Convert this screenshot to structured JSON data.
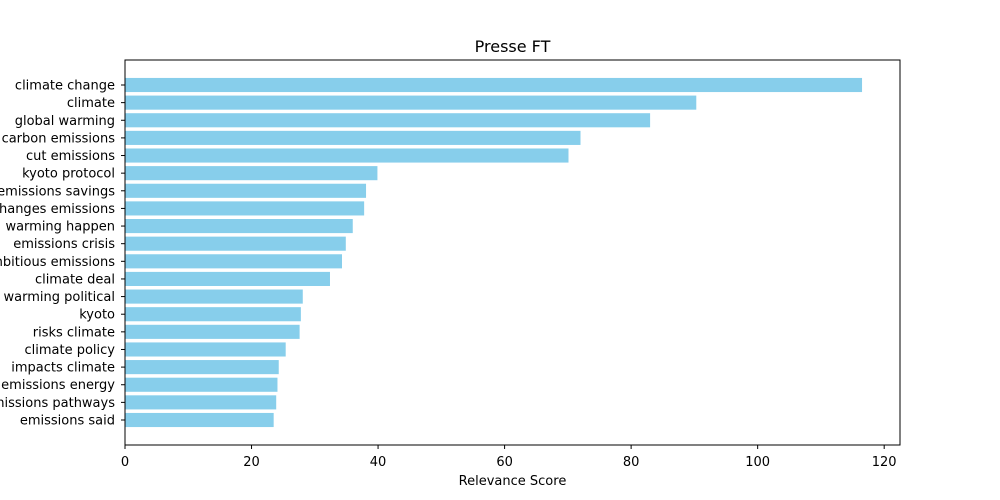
{
  "chart_data": {
    "type": "bar",
    "orientation": "horizontal",
    "title": "Presse FT",
    "xlabel": "Relevance Score",
    "ylabel": "",
    "xlim": [
      0,
      122.5
    ],
    "xticks": [
      "0",
      "20",
      "40",
      "60",
      "80",
      "100",
      "120"
    ],
    "grid": false,
    "bar_color": "#87CEEB",
    "categories": [
      "climate change",
      "climate",
      "global warming",
      "carbon emissions",
      "cut emissions",
      "kyoto protocol",
      "emissions savings",
      "changes emissions",
      "warming happen",
      "emissions crisis",
      "ambitious emissions",
      "climate deal",
      "warming political",
      "kyoto",
      "risks climate",
      "climate policy",
      "impacts climate",
      "emissions energy",
      "emissions pathways",
      "emissions said"
    ],
    "values": [
      116.5,
      90.3,
      83.0,
      72.0,
      70.1,
      39.9,
      38.1,
      37.8,
      36.0,
      34.9,
      34.3,
      32.4,
      28.1,
      27.8,
      27.6,
      25.4,
      24.3,
      24.1,
      23.9,
      23.5
    ]
  }
}
